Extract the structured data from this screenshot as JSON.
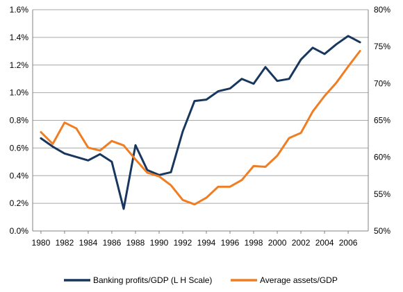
{
  "chart_data": {
    "type": "line",
    "title": "",
    "x": [
      1980,
      1981,
      1982,
      1983,
      1984,
      1985,
      1986,
      1987,
      1988,
      1989,
      1990,
      1991,
      1992,
      1993,
      1994,
      1995,
      1996,
      1997,
      1998,
      1999,
      2000,
      2001,
      2002,
      2003,
      2004,
      2005,
      2006,
      2007
    ],
    "x_tick_labels": [
      "1980",
      "1982",
      "1984",
      "1986",
      "1988",
      "1990",
      "1992",
      "1994",
      "1996",
      "1998",
      "2000",
      "2002",
      "2004",
      "2006"
    ],
    "x_ticks": [
      1980,
      1982,
      1984,
      1986,
      1988,
      1990,
      1992,
      1994,
      1996,
      1998,
      2000,
      2002,
      2004,
      2006
    ],
    "xlim": [
      1979.3,
      2007.7
    ],
    "left_axis": {
      "ylim": [
        0,
        1.6
      ],
      "ticks": [
        0,
        0.2,
        0.4,
        0.6,
        0.8,
        1.0,
        1.2,
        1.4,
        1.6
      ],
      "tick_labels": [
        "0.0%",
        "0.2%",
        "0.4%",
        "0.6%",
        "0.8%",
        "1.0%",
        "1.2%",
        "1.4%",
        "1.6%"
      ]
    },
    "right_axis": {
      "ylim": [
        50,
        80
      ],
      "ticks": [
        50,
        55,
        60,
        65,
        70,
        75,
        80
      ],
      "tick_labels": [
        "50%",
        "55%",
        "60%",
        "65%",
        "70%",
        "75%",
        "80%"
      ]
    },
    "grid": true,
    "legend_position": "bottom",
    "series": [
      {
        "name": "Banking profits/GDP (L H Scale)",
        "axis": "left",
        "color": "#17375e",
        "values": [
          0.67,
          0.61,
          0.56,
          0.535,
          0.51,
          0.555,
          0.5,
          0.16,
          0.62,
          0.44,
          0.405,
          0.425,
          0.72,
          0.94,
          0.95,
          1.01,
          1.03,
          1.1,
          1.065,
          1.185,
          1.085,
          1.1,
          1.24,
          1.325,
          1.28,
          1.35,
          1.41,
          1.365
        ]
      },
      {
        "name": "Average assets/GDP",
        "axis": "right",
        "color": "#f07d22",
        "values": [
          63.4,
          61.8,
          64.7,
          63.9,
          61.3,
          60.9,
          62.2,
          61.6,
          59.7,
          57.9,
          57.4,
          56.2,
          54.2,
          53.6,
          54.5,
          56.0,
          56.0,
          56.9,
          58.8,
          58.7,
          60.2,
          62.6,
          63.3,
          66.2,
          68.3,
          70.1,
          72.3,
          74.4
        ]
      }
    ]
  }
}
